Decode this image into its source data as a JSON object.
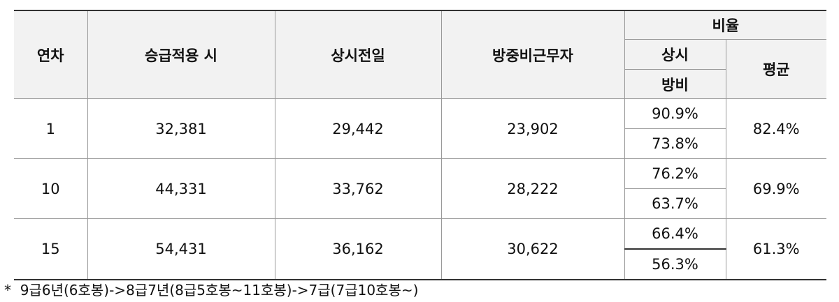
{
  "table": {
    "headers": {
      "year": "연차",
      "promotion": "승급적용 시",
      "regular": "상시전일",
      "visiting": "방중비근무자",
      "ratio": "비율",
      "ratio_regular": "상시",
      "ratio_visiting": "방비",
      "average": "평균"
    },
    "rows": [
      {
        "year": "1",
        "promotion": "32,381",
        "regular": "29,442",
        "visiting": "23,902",
        "ratio_regular": "90.9%",
        "ratio_visiting": "73.8%",
        "average": "82.4%"
      },
      {
        "year": "10",
        "promotion": "44,331",
        "regular": "33,762",
        "visiting": "28,222",
        "ratio_regular": "76.2%",
        "ratio_visiting": "63.7%",
        "average": "69.9%"
      },
      {
        "year": "15",
        "promotion": "54,431",
        "regular": "36,162",
        "visiting": "30,622",
        "ratio_regular": "66.4%",
        "ratio_visiting": "56.3%",
        "average": "61.3%"
      }
    ]
  },
  "footnote": "*  9급6년(6호봉)->8급7년(8급5호봉~11호봉)->7급(7급10호봉~)"
}
